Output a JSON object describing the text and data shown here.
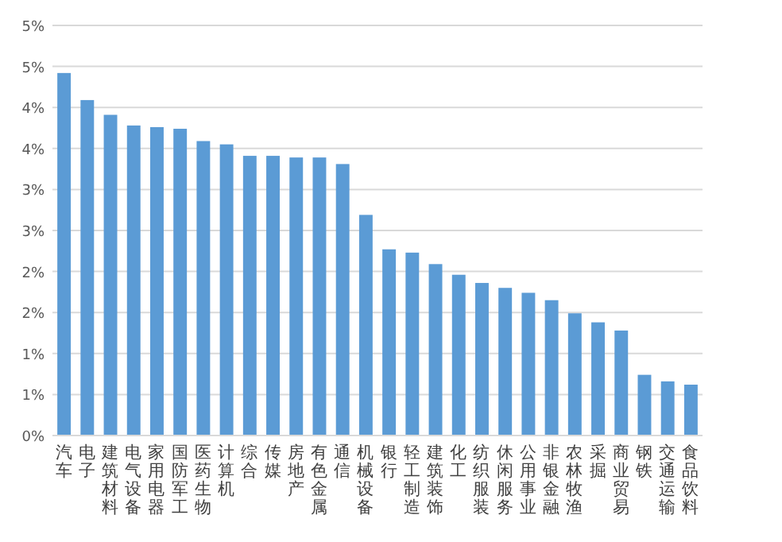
{
  "chart_data": {
    "type": "bar",
    "categories": [
      "汽车",
      "电子",
      "建筑材料",
      "电气设备",
      "家用电器",
      "国防军工",
      "医药生物",
      "计算机",
      "综合",
      "传媒",
      "房地产",
      "有色金属",
      "通信",
      "机械设备",
      "银行",
      "轻工制造",
      "建筑装饰",
      "化工",
      "纺织服装",
      "休闲服务",
      "公用事业",
      "非银金融",
      "农林牧渔",
      "采掘",
      "商业贸易",
      "钢铁",
      "交通运输",
      "食品饮料"
    ],
    "values": [
      4.42,
      4.09,
      3.91,
      3.78,
      3.76,
      3.74,
      3.59,
      3.55,
      3.41,
      3.41,
      3.39,
      3.39,
      3.31,
      2.69,
      2.27,
      2.23,
      2.09,
      1.96,
      1.86,
      1.8,
      1.74,
      1.65,
      1.49,
      1.38,
      1.28,
      0.74,
      0.66,
      0.62
    ],
    "color": "#5b9bd5",
    "ylim": [
      0,
      5
    ],
    "yticks": [
      {
        "value": 0,
        "label": "0%"
      },
      {
        "value": 0.5,
        "label": "1%"
      },
      {
        "value": 1,
        "label": "1%"
      },
      {
        "value": 1.5,
        "label": "2%"
      },
      {
        "value": 2,
        "label": "2%"
      },
      {
        "value": 2.5,
        "label": "3%"
      },
      {
        "value": 3,
        "label": "3%"
      },
      {
        "value": 3.5,
        "label": "4%"
      },
      {
        "value": 4,
        "label": "4%"
      },
      {
        "value": 4.5,
        "label": "5%"
      },
      {
        "value": 5,
        "label": "5%"
      }
    ],
    "grid": "y"
  }
}
